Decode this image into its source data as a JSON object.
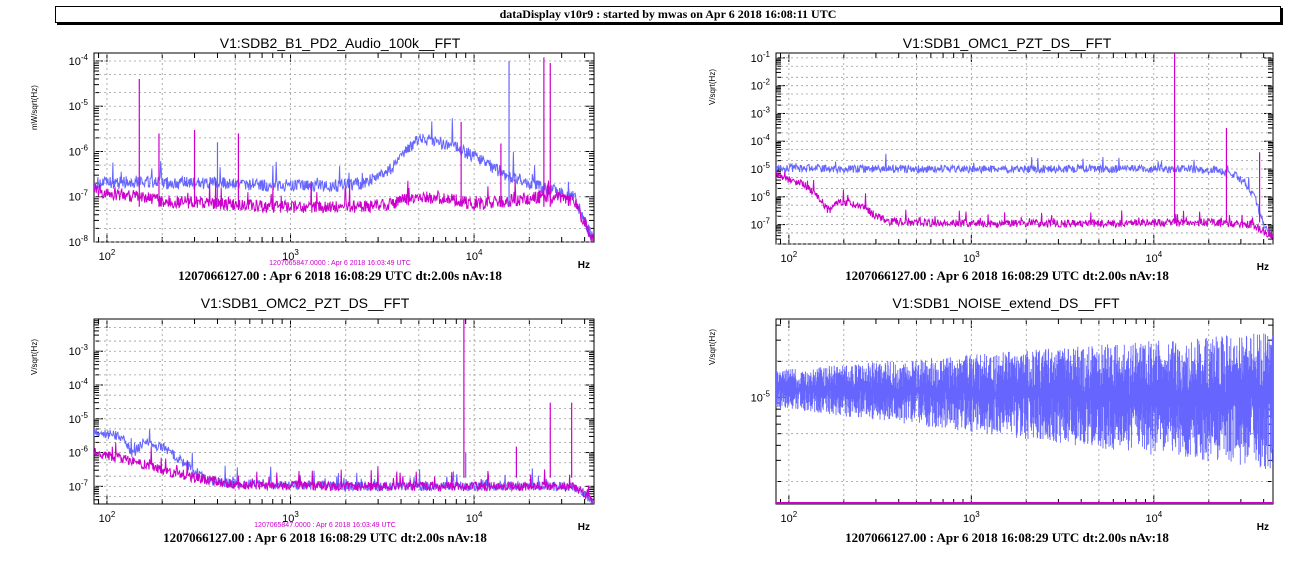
{
  "header": {
    "title": "dataDisplay v10r9 : started by mwas on Apr  6 2018 16:08:11 UTC"
  },
  "colors": {
    "series_a": "#6666ff",
    "series_b": "#cc00cc",
    "grid": "#9a9a9a"
  },
  "chart_data": [
    {
      "type": "line",
      "title": "V1:SDB2_B1_PD2_Audio_100k__FFT",
      "xlabel": "Hz",
      "ylabel": "mW/sqrt(Hz)",
      "xscale": "log",
      "yscale": "log",
      "xlim": [
        85,
        45000
      ],
      "ylim": [
        1e-08,
        0.00015
      ],
      "xticks": [
        100,
        1000,
        10000
      ],
      "yticks": [
        1e-08,
        1e-07,
        1e-06,
        1e-05,
        0.0001
      ],
      "grid": true,
      "time_tag": "1207065847.0000 : Apr  6 2018 16:03:49 UTC",
      "footer": "1207066127.00 : Apr  6 2018 16:08:29 UTC dt:2.00s nAv:18",
      "series": [
        {
          "color": "#6666ff",
          "x": [
            85,
            100,
            150,
            200,
            400,
            800,
            1500,
            2500,
            3500,
            5000,
            7000,
            10000,
            15000,
            25000,
            35000,
            45000
          ],
          "y": [
            2e-07,
            2e-07,
            2.2e-07,
            2e-07,
            2e-07,
            1.8e-07,
            1.7e-07,
            2e-07,
            4e-07,
            2e-06,
            1.5e-06,
            8e-07,
            3e-07,
            1.5e-07,
            1e-07,
            1e-08
          ]
        },
        {
          "color": "#cc00cc",
          "x": [
            85,
            100,
            150,
            200,
            400,
            800,
            1500,
            2500,
            3500,
            5000,
            7000,
            10000,
            15000,
            25000,
            35000,
            45000
          ],
          "y": [
            1.5e-07,
            1.2e-07,
            1e-07,
            8e-08,
            7e-08,
            6e-08,
            6e-08,
            6e-08,
            7e-08,
            1e-07,
            9e-08,
            7e-08,
            8e-08,
            1e-07,
            8e-08,
            1e-08
          ]
        }
      ],
      "spikes": [
        {
          "x": 150,
          "y": 4e-05,
          "color": "#cc00cc"
        },
        {
          "x": 192,
          "y": 2.5e-06,
          "color": "#cc00cc"
        },
        {
          "x": 300,
          "y": 3e-06,
          "color": "#cc00cc"
        },
        {
          "x": 400,
          "y": 1.6e-06,
          "color": "#6666ff"
        },
        {
          "x": 520,
          "y": 2.5e-06,
          "color": "#cc00cc"
        },
        {
          "x": 8500,
          "y": 4.5e-06,
          "color": "#cc00cc"
        },
        {
          "x": 15500,
          "y": 0.0001,
          "color": "#6666ff"
        },
        {
          "x": 24000,
          "y": 0.00012,
          "color": "#cc00cc"
        },
        {
          "x": 26000,
          "y": 9e-05,
          "color": "#cc00cc"
        },
        {
          "x": 14000,
          "y": 1.5e-06,
          "color": "#cc00cc"
        }
      ]
    },
    {
      "type": "line",
      "title": "V1:SDB1_OMC1_PZT_DS__FFT",
      "xlabel": "Hz",
      "ylabel": "V/sqrt(Hz)",
      "xscale": "log",
      "yscale": "log",
      "xlim": [
        85,
        45000
      ],
      "ylim": [
        2e-08,
        0.15
      ],
      "xticks": [
        100,
        1000,
        10000
      ],
      "yticks": [
        1e-07,
        1e-06,
        1e-05,
        0.0001,
        0.001,
        0.01,
        0.1
      ],
      "grid": true,
      "time_tag": "",
      "footer": "1207066127.00 : Apr  6 2018 16:08:29 UTC dt:2.00s nAv:18",
      "series": [
        {
          "color": "#6666ff",
          "x": [
            85,
            200,
            1000,
            5000,
            15000,
            22000,
            28000,
            32000,
            36000,
            40000,
            45000
          ],
          "y": [
            1.1e-05,
            1e-05,
            1e-05,
            1e-05,
            1e-05,
            9e-06,
            6e-06,
            3e-06,
            8e-07,
            1e-07,
            3e-08
          ]
        },
        {
          "color": "#cc00cc",
          "x": [
            85,
            120,
            150,
            165,
            180,
            250,
            300,
            350,
            500,
            1000,
            5000,
            20000,
            35000,
            40000,
            45000
          ],
          "y": [
            6e-06,
            3e-06,
            8e-07,
            3e-07,
            7e-07,
            5e-07,
            2e-07,
            1.3e-07,
            1.2e-07,
            1.1e-07,
            1.1e-07,
            1.2e-07,
            1e-07,
            6e-08,
            3e-08
          ]
        }
      ],
      "spikes": [
        {
          "x": 13000,
          "y": 0.15,
          "color": "#cc00cc"
        },
        {
          "x": 25000,
          "y": 0.0003,
          "color": "#cc00cc"
        },
        {
          "x": 38000,
          "y": 4e-05,
          "color": "#cc00cc"
        }
      ]
    },
    {
      "type": "line",
      "title": "V1:SDB1_OMC2_PZT_DS__FFT",
      "xlabel": "Hz",
      "ylabel": "V/sqrt(Hz)",
      "xscale": "log",
      "yscale": "log",
      "xlim": [
        85,
        45000
      ],
      "ylim": [
        3e-08,
        0.009
      ],
      "xticks": [
        100,
        1000,
        10000
      ],
      "yticks": [
        1e-07,
        1e-06,
        1e-05,
        0.0001,
        0.001
      ],
      "grid": true,
      "time_tag": "1207065847.0000 : Apr  6 2018 16:03:49 UTC",
      "footer": "1207066127.00 : Apr  6 2018 16:08:29 UTC dt:2.00s nAv:18",
      "series": [
        {
          "color": "#6666ff",
          "x": [
            85,
            120,
            140,
            160,
            180,
            200,
            250,
            300,
            350,
            500,
            2000,
            10000,
            35000,
            40000,
            45000
          ],
          "y": [
            4e-06,
            3e-06,
            8e-07,
            2.5e-06,
            1.5e-06,
            1.5e-06,
            6e-07,
            3e-07,
            1.5e-07,
            1.2e-07,
            1e-07,
            1e-07,
            1e-07,
            6e-08,
            3e-08
          ]
        },
        {
          "color": "#cc00cc",
          "x": [
            85,
            150,
            200,
            300,
            500,
            2000,
            10000,
            35000,
            40000,
            45000
          ],
          "y": [
            1e-06,
            5e-07,
            3e-07,
            1.8e-07,
            1.1e-07,
            1e-07,
            1e-07,
            1e-07,
            6e-08,
            3e-08
          ]
        }
      ],
      "spikes": [
        {
          "x": 8800,
          "y": 0.009,
          "color": "#cc00cc"
        },
        {
          "x": 9000,
          "y": 1e-06,
          "color": "#6666ff"
        },
        {
          "x": 17000,
          "y": 1.5e-06,
          "color": "#cc00cc"
        },
        {
          "x": 26000,
          "y": 3e-05,
          "color": "#cc00cc"
        },
        {
          "x": 34000,
          "y": 3e-05,
          "color": "#cc00cc"
        }
      ]
    },
    {
      "type": "line",
      "title": "V1:SDB1_NOISE_extend_DS__FFT",
      "xlabel": "Hz",
      "ylabel": "V/sqrt(Hz)",
      "xscale": "log",
      "yscale": "log",
      "xlim": [
        85,
        45000
      ],
      "ylim": [
        1.3e-06,
        4.5e-05
      ],
      "xticks": [
        100,
        1000,
        10000
      ],
      "yticks": [
        1e-05
      ],
      "grid": true,
      "time_tag": "",
      "footer": "1207066127.00 : Apr  6 2018 16:08:29 UTC dt:2.00s nAv:18",
      "noise_band": {
        "color": "#6666ff",
        "x": [
          85,
          45000
        ],
        "center": [
          1.2e-05,
          1e-05
        ],
        "spread_decades": [
          0.15,
          0.55
        ]
      },
      "baseline": {
        "color": "#cc00cc",
        "y": 1.3e-06
      }
    }
  ]
}
